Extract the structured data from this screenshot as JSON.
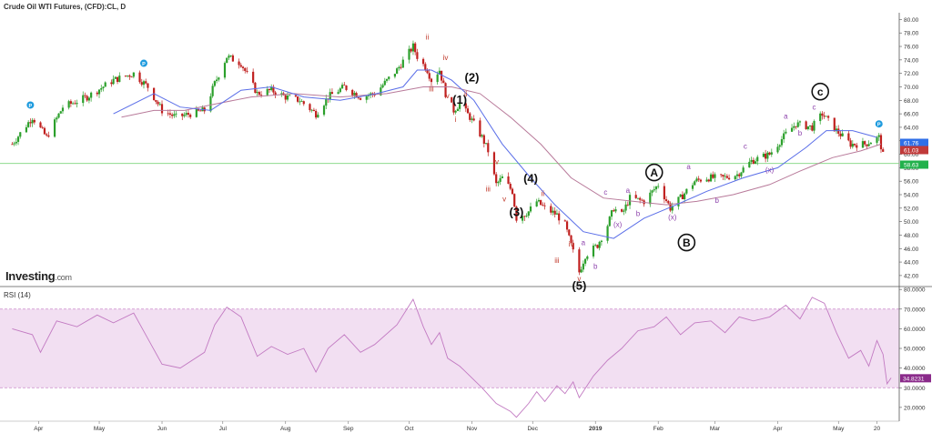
{
  "header": {
    "title": "Crude Oil WTI Futures, (CFD):CL, D",
    "logo_main": "Investing",
    "logo_suffix": ".com"
  },
  "rsi_panel": {
    "label": "RSI (14)"
  },
  "chart_data": [
    {
      "type": "candlestick",
      "title": "Crude Oil WTI Futures, (CFD):CL, D",
      "y_ticks": [
        "80.00",
        "78.00",
        "76.00",
        "74.00",
        "72.00",
        "70.00",
        "68.00",
        "66.00",
        "64.00",
        "62.00",
        "60.00",
        "58.00",
        "56.00",
        "54.00",
        "52.00",
        "50.00",
        "48.00",
        "46.00",
        "44.00",
        "42.00"
      ],
      "x_ticks": [
        "Apr",
        "May",
        "Jun",
        "Jul",
        "Aug",
        "Sep",
        "Oct",
        "Nov",
        "Dec",
        "2019",
        "Feb",
        "Mar",
        "Apr",
        "May",
        "20"
      ],
      "ylim": [
        40.5,
        81
      ],
      "price_path": [
        [
          "2018-03-19",
          61.5
        ],
        [
          "2018-03-29",
          65.5
        ],
        [
          "2018-04-05",
          62.5
        ],
        [
          "2018-04-13",
          67.0
        ],
        [
          "2018-04-25",
          68.5
        ],
        [
          "2018-05-08",
          71.0
        ],
        [
          "2018-05-18",
          72.0
        ],
        [
          "2018-05-25",
          70.0
        ],
        [
          "2018-06-01",
          66.5
        ],
        [
          "2018-06-08",
          65.5
        ],
        [
          "2018-06-15",
          66.0
        ],
        [
          "2018-06-22",
          66.5
        ],
        [
          "2018-06-27",
          70.5
        ],
        [
          "2018-07-03",
          74.5
        ],
        [
          "2018-07-10",
          73.5
        ],
        [
          "2018-07-18",
          69.0
        ],
        [
          "2018-07-25",
          69.5
        ],
        [
          "2018-08-01",
          68.5
        ],
        [
          "2018-08-08",
          68.0
        ],
        [
          "2018-08-16",
          66.0
        ],
        [
          "2018-08-22",
          68.5
        ],
        [
          "2018-08-30",
          70.0
        ],
        [
          "2018-09-07",
          68.5
        ],
        [
          "2018-09-14",
          69.0
        ],
        [
          "2018-09-25",
          72.5
        ],
        [
          "2018-10-03",
          76.0
        ],
        [
          "2018-10-05",
          74.5
        ],
        [
          "2018-10-10",
          72.5
        ],
        [
          "2018-10-12",
          71.0
        ],
        [
          "2018-10-16",
          72.5
        ],
        [
          "2018-10-19",
          69.0
        ],
        [
          "2018-10-23",
          66.5
        ],
        [
          "2018-10-26",
          67.5
        ],
        [
          "2018-10-31",
          65.5
        ],
        [
          "2018-11-06",
          62.5
        ],
        [
          "2018-11-09",
          60.5
        ],
        [
          "2018-11-13",
          55.5
        ],
        [
          "2018-11-16",
          56.5
        ],
        [
          "2018-11-21",
          54.5
        ],
        [
          "2018-11-23",
          50.5
        ],
        [
          "2018-11-29",
          51.5
        ],
        [
          "2018-12-03",
          53.0
        ],
        [
          "2018-12-07",
          52.0
        ],
        [
          "2018-12-13",
          51.0
        ],
        [
          "2018-12-17",
          49.5
        ],
        [
          "2018-12-21",
          45.5
        ],
        [
          "2018-12-24",
          42.5
        ],
        [
          "2018-12-27",
          45.0
        ],
        [
          "2019-01-02",
          46.5
        ],
        [
          "2019-01-07",
          49.5
        ],
        [
          "2019-01-10",
          52.0
        ],
        [
          "2019-01-14",
          51.0
        ],
        [
          "2019-01-18",
          53.5
        ],
        [
          "2019-01-25",
          53.0
        ],
        [
          "2019-02-01",
          55.5
        ],
        [
          "2019-02-07",
          52.0
        ],
        [
          "2019-02-12",
          53.5
        ],
        [
          "2019-02-19",
          56.0
        ],
        [
          "2019-02-25",
          56.5
        ],
        [
          "2019-03-05",
          56.5
        ],
        [
          "2019-03-12",
          57.0
        ],
        [
          "2019-03-19",
          59.0
        ],
        [
          "2019-03-28",
          60.0
        ],
        [
          "2019-04-05",
          63.0
        ],
        [
          "2019-04-10",
          64.5
        ],
        [
          "2019-04-18",
          64.0
        ],
        [
          "2019-04-23",
          66.0
        ],
        [
          "2019-04-30",
          63.5
        ],
        [
          "2019-05-07",
          61.5
        ],
        [
          "2019-05-14",
          61.5
        ],
        [
          "2019-05-21",
          62.5
        ],
        [
          "2019-05-24",
          58.5
        ]
      ],
      "ma_fast": [
        [
          "2018-05-08",
          66.0
        ],
        [
          "2018-05-28",
          69.0
        ],
        [
          "2018-06-10",
          67.0
        ],
        [
          "2018-06-25",
          66.5
        ],
        [
          "2018-07-10",
          69.5
        ],
        [
          "2018-07-25",
          70.0
        ],
        [
          "2018-08-10",
          68.5
        ],
        [
          "2018-08-28",
          68.0
        ],
        [
          "2018-09-15",
          69.0
        ],
        [
          "2018-09-28",
          70.0
        ],
        [
          "2018-10-05",
          72.5
        ],
        [
          "2018-10-12",
          72.5
        ],
        [
          "2018-10-22",
          71.0
        ],
        [
          "2018-11-02",
          68.0
        ],
        [
          "2018-11-16",
          61.5
        ],
        [
          "2018-11-30",
          56.5
        ],
        [
          "2018-12-12",
          52.5
        ],
        [
          "2018-12-26",
          48.5
        ],
        [
          "2019-01-10",
          47.5
        ],
        [
          "2019-01-25",
          50.5
        ],
        [
          "2019-02-10",
          52.5
        ],
        [
          "2019-02-25",
          54.5
        ],
        [
          "2019-03-15",
          56.5
        ],
        [
          "2019-04-01",
          58.0
        ],
        [
          "2019-04-15",
          61.0
        ],
        [
          "2019-04-25",
          63.5
        ],
        [
          "2019-05-08",
          63.5
        ],
        [
          "2019-05-20",
          62.5
        ]
      ],
      "ma_slow": [
        [
          "2018-05-12",
          65.5
        ],
        [
          "2018-05-28",
          66.5
        ],
        [
          "2018-06-12",
          66.5
        ],
        [
          "2018-06-28",
          67.5
        ],
        [
          "2018-07-15",
          68.5
        ],
        [
          "2018-08-05",
          69.0
        ],
        [
          "2018-08-28",
          68.5
        ],
        [
          "2018-09-20",
          69.0
        ],
        [
          "2018-10-08",
          70.0
        ],
        [
          "2018-10-22",
          70.0
        ],
        [
          "2018-11-05",
          69.0
        ],
        [
          "2018-11-20",
          65.5
        ],
        [
          "2018-12-05",
          61.5
        ],
        [
          "2018-12-20",
          56.5
        ],
        [
          "2019-01-05",
          53.5
        ],
        [
          "2019-01-20",
          53.0
        ],
        [
          "2019-02-05",
          52.5
        ],
        [
          "2019-02-20",
          53.0
        ],
        [
          "2019-03-10",
          54.0
        ],
        [
          "2019-03-28",
          55.5
        ],
        [
          "2019-04-12",
          57.5
        ],
        [
          "2019-04-28",
          59.5
        ],
        [
          "2019-05-12",
          60.5
        ],
        [
          "2019-05-22",
          61.5
        ]
      ],
      "horizontal_line": 58.63,
      "price_badges": [
        {
          "value": "61.76",
          "color": "#2f6fe8"
        },
        {
          "value": "61.03",
          "color": "#c03a3a"
        },
        {
          "value": "58.63",
          "color": "#22b14c"
        }
      ],
      "wave_labels": [
        {
          "text": "(1)",
          "date": "2018-10-26",
          "y": 67.5,
          "color": "#111111",
          "size": 13
        },
        {
          "text": "(2)",
          "date": "2018-11-01",
          "y": 70.8,
          "color": "#111111",
          "size": 13
        },
        {
          "text": "(3)",
          "date": "2018-11-23",
          "y": 50.8,
          "color": "#111111",
          "size": 13
        },
        {
          "text": "(4)",
          "date": "2018-11-30",
          "y": 55.8,
          "color": "#111111",
          "size": 13
        },
        {
          "text": "(5)",
          "date": "2018-12-24",
          "y": 39.9,
          "color": "#111111",
          "size": 13
        },
        {
          "text": "ii",
          "date": "2018-10-10",
          "y": 77.0,
          "color": "#c0392b",
          "size": 8
        },
        {
          "text": "iv",
          "date": "2018-10-19",
          "y": 74.0,
          "color": "#c0392b",
          "size": 8
        },
        {
          "text": "iii",
          "date": "2018-10-12",
          "y": 69.3,
          "color": "#c0392b",
          "size": 8
        },
        {
          "text": "v",
          "date": "2018-10-20",
          "y": 68.3,
          "color": "#c0392b",
          "size": 8
        },
        {
          "text": "ii",
          "date": "2018-10-29",
          "y": 68.6,
          "color": "#c0392b",
          "size": 8
        },
        {
          "text": "i",
          "date": "2018-10-24",
          "y": 64.8,
          "color": "#c0392b",
          "size": 8
        },
        {
          "text": "iv",
          "date": "2018-11-13",
          "y": 58.5,
          "color": "#c0392b",
          "size": 8
        },
        {
          "text": "iii",
          "date": "2018-11-09",
          "y": 54.5,
          "color": "#c0392b",
          "size": 8
        },
        {
          "text": "v",
          "date": "2018-11-17",
          "y": 53.0,
          "color": "#c0392b",
          "size": 8
        },
        {
          "text": "ii",
          "date": "2018-12-06",
          "y": 53.8,
          "color": "#c0392b",
          "size": 8
        },
        {
          "text": "i",
          "date": "2018-11-27",
          "y": 50.1,
          "color": "#c0392b",
          "size": 8
        },
        {
          "text": "iv",
          "date": "2018-12-20",
          "y": 46.3,
          "color": "#c0392b",
          "size": 8
        },
        {
          "text": "iii",
          "date": "2018-12-13",
          "y": 43.9,
          "color": "#c0392b",
          "size": 8
        },
        {
          "text": "v",
          "date": "2018-12-24",
          "y": 41.2,
          "color": "#c0392b",
          "size": 8
        },
        {
          "text": "a",
          "date": "2018-12-26",
          "y": 46.5,
          "color": "#8e44ad",
          "size": 8
        },
        {
          "text": "b",
          "date": "2019-01-01",
          "y": 43.0,
          "color": "#8e44ad",
          "size": 8
        },
        {
          "text": "c",
          "date": "2019-01-06",
          "y": 54.0,
          "color": "#8e44ad",
          "size": 8
        },
        {
          "text": "(x)",
          "date": "2019-01-12",
          "y": 49.2,
          "color": "#8e44ad",
          "size": 8
        },
        {
          "text": "a",
          "date": "2019-01-17",
          "y": 54.3,
          "color": "#8e44ad",
          "size": 8
        },
        {
          "text": "b",
          "date": "2019-01-22",
          "y": 50.8,
          "color": "#8e44ad",
          "size": 8
        },
        {
          "text": "c",
          "date": "2019-01-28",
          "y": 56.3,
          "color": "#8e44ad",
          "size": 8
        },
        {
          "text": "(x)",
          "date": "2019-02-08",
          "y": 50.3,
          "color": "#8e44ad",
          "size": 8
        },
        {
          "text": "a",
          "date": "2019-02-16",
          "y": 57.8,
          "color": "#8e44ad",
          "size": 8
        },
        {
          "text": "b",
          "date": "2019-03-02",
          "y": 52.8,
          "color": "#8e44ad",
          "size": 8
        },
        {
          "text": "c",
          "date": "2019-03-16",
          "y": 60.8,
          "color": "#8e44ad",
          "size": 8
        },
        {
          "text": "(x)",
          "date": "2019-03-28",
          "y": 57.3,
          "color": "#8e44ad",
          "size": 8
        },
        {
          "text": "a",
          "date": "2019-04-05",
          "y": 65.3,
          "color": "#8e44ad",
          "size": 8
        },
        {
          "text": "b",
          "date": "2019-04-12",
          "y": 62.8,
          "color": "#8e44ad",
          "size": 8
        },
        {
          "text": "c",
          "date": "2019-04-19",
          "y": 66.6,
          "color": "#8e44ad",
          "size": 8
        }
      ],
      "circled_labels": [
        {
          "text": "A",
          "date": "2019-01-30",
          "y": 57.3
        },
        {
          "text": "B",
          "date": "2019-02-15",
          "y": 46.9
        },
        {
          "text": "c",
          "date": "2019-04-22",
          "y": 69.3
        }
      ],
      "p_markers": [
        {
          "date": "2018-03-28",
          "y": 67.3
        },
        {
          "date": "2018-05-23",
          "y": 73.5
        },
        {
          "date": "2019-05-21",
          "y": 64.5
        }
      ]
    },
    {
      "type": "line",
      "title": "RSI (14)",
      "y_ticks": [
        "80.0000",
        "70.0000",
        "60.0000",
        "50.0000",
        "40.0000",
        "30.0000",
        "20.0000"
      ],
      "ylim": [
        13,
        81
      ],
      "band": [
        30,
        70
      ],
      "last_value": "34.8231",
      "values": [
        [
          "2018-03-19",
          60
        ],
        [
          "2018-03-29",
          57
        ],
        [
          "2018-04-02",
          48
        ],
        [
          "2018-04-10",
          64
        ],
        [
          "2018-04-20",
          61
        ],
        [
          "2018-04-30",
          67
        ],
        [
          "2018-05-08",
          63
        ],
        [
          "2018-05-18",
          68
        ],
        [
          "2018-05-25",
          55
        ],
        [
          "2018-06-01",
          42
        ],
        [
          "2018-06-10",
          40
        ],
        [
          "2018-06-22",
          48
        ],
        [
          "2018-06-27",
          62
        ],
        [
          "2018-07-03",
          71
        ],
        [
          "2018-07-10",
          66
        ],
        [
          "2018-07-18",
          46
        ],
        [
          "2018-07-25",
          51
        ],
        [
          "2018-08-02",
          47
        ],
        [
          "2018-08-10",
          50
        ],
        [
          "2018-08-16",
          38
        ],
        [
          "2018-08-22",
          50
        ],
        [
          "2018-08-30",
          57
        ],
        [
          "2018-09-07",
          48
        ],
        [
          "2018-09-14",
          52
        ],
        [
          "2018-09-25",
          62
        ],
        [
          "2018-10-03",
          75
        ],
        [
          "2018-10-08",
          61
        ],
        [
          "2018-10-12",
          52
        ],
        [
          "2018-10-16",
          58
        ],
        [
          "2018-10-20",
          45
        ],
        [
          "2018-10-26",
          41
        ],
        [
          "2018-10-31",
          36
        ],
        [
          "2018-11-06",
          30
        ],
        [
          "2018-11-13",
          22
        ],
        [
          "2018-11-20",
          18
        ],
        [
          "2018-11-23",
          15
        ],
        [
          "2018-11-29",
          22
        ],
        [
          "2018-12-03",
          28
        ],
        [
          "2018-12-07",
          23
        ],
        [
          "2018-12-13",
          31
        ],
        [
          "2018-12-17",
          27
        ],
        [
          "2018-12-21",
          33
        ],
        [
          "2018-12-24",
          25
        ],
        [
          "2018-12-31",
          36
        ],
        [
          "2019-01-07",
          44
        ],
        [
          "2019-01-14",
          50
        ],
        [
          "2019-01-22",
          59
        ],
        [
          "2019-01-30",
          61
        ],
        [
          "2019-02-05",
          66
        ],
        [
          "2019-02-12",
          57
        ],
        [
          "2019-02-19",
          63
        ],
        [
          "2019-02-27",
          64
        ],
        [
          "2019-03-06",
          58
        ],
        [
          "2019-03-13",
          66
        ],
        [
          "2019-03-20",
          64
        ],
        [
          "2019-03-28",
          66
        ],
        [
          "2019-04-05",
          72
        ],
        [
          "2019-04-12",
          65
        ],
        [
          "2019-04-18",
          76
        ],
        [
          "2019-04-24",
          73
        ],
        [
          "2019-04-30",
          58
        ],
        [
          "2019-05-06",
          45
        ],
        [
          "2019-05-12",
          49
        ],
        [
          "2019-05-16",
          41
        ],
        [
          "2019-05-20",
          54
        ],
        [
          "2019-05-23",
          47
        ],
        [
          "2019-05-25",
          32
        ],
        [
          "2019-05-27",
          35
        ]
      ]
    }
  ]
}
